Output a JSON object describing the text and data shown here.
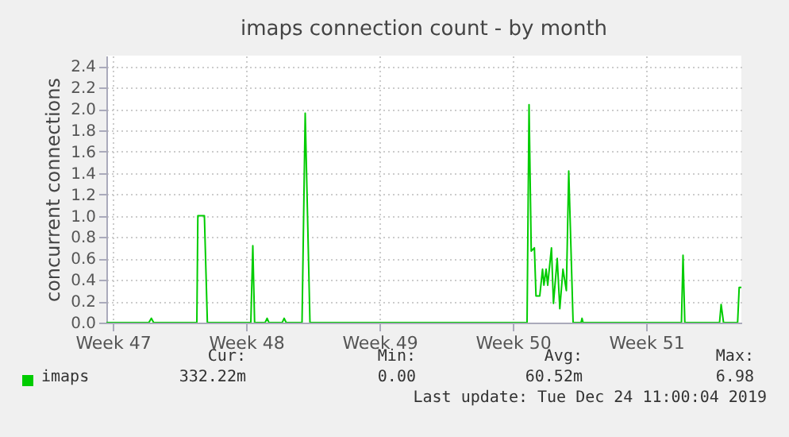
{
  "chart_data": {
    "type": "line",
    "title": "imaps connection count - by month",
    "ylabel": "concurrent connections",
    "xlim": [
      "2019-11-21T04:00",
      "2019-12-24T12:00"
    ],
    "xticks": [
      {
        "value": "2019-11-21T12:00",
        "label": "Week 47"
      },
      {
        "value": "2019-11-28T12:00",
        "label": "Week 48"
      },
      {
        "value": "2019-12-05T12:00",
        "label": "Week 49"
      },
      {
        "value": "2019-12-12T12:00",
        "label": "Week 50"
      },
      {
        "value": "2019-12-19T12:00",
        "label": "Week 51"
      }
    ],
    "ylim": [
      0,
      2.5
    ],
    "yticks": [
      {
        "value": 0,
        "label": "0.0"
      },
      {
        "value": 0.2,
        "label": "0.2"
      },
      {
        "value": 0.4,
        "label": "0.4"
      },
      {
        "value": 0.6,
        "label": "0.6"
      },
      {
        "value": 0.8,
        "label": "0.8"
      },
      {
        "value": 1,
        "label": "1.0"
      },
      {
        "value": 1.2,
        "label": "1.2"
      },
      {
        "value": 1.4,
        "label": "1.4"
      },
      {
        "value": 1.6,
        "label": "1.6"
      },
      {
        "value": 1.8,
        "label": "1.8"
      },
      {
        "value": 2,
        "label": "2.0"
      },
      {
        "value": 2.2,
        "label": "2.2"
      },
      {
        "value": 2.4,
        "label": "2.4"
      }
    ],
    "grid": true,
    "legend": "bottom left",
    "marker": "none",
    "line_style": "solid",
    "series": [
      {
        "name": "imaps",
        "color": "#00cc00",
        "x": [
          "2019-11-21T04:00",
          "2019-11-23T09:30",
          "2019-11-23T12:45",
          "2019-11-23T15:30",
          "2019-11-25T22:00",
          "2019-11-25T23:15",
          "2019-11-26T07:30",
          "2019-11-26T11:15",
          "2019-11-28T18:00",
          "2019-11-28T20:30",
          "2019-11-28T22:45",
          "2019-11-29T12:00",
          "2019-11-29T14:30",
          "2019-11-29T16:45",
          "2019-11-30T09:30",
          "2019-11-30T12:00",
          "2019-11-30T14:30",
          "2019-12-01T10:30",
          "2019-12-01T14:30",
          "2019-12-01T20:30",
          "2019-12-13T06:00",
          "2019-12-13T08:30",
          "2019-12-13T11:15",
          "2019-12-13T15:15",
          "2019-12-13T17:15",
          "2019-12-13T22:00",
          "2019-12-14T01:30",
          "2019-12-14T03:15",
          "2019-12-14T06:00",
          "2019-12-14T08:00",
          "2019-12-14T10:00",
          "2019-12-14T12:45",
          "2019-12-14T15:15",
          "2019-12-14T20:00",
          "2019-12-14T23:15",
          "2019-12-15T03:15",
          "2019-12-15T07:30",
          "2019-12-15T10:30",
          "2019-12-15T16:00",
          "2019-12-16T02:00",
          "2019-12-16T03:15",
          "2019-12-16T04:30",
          "2019-12-21T08:30",
          "2019-12-21T10:30",
          "2019-12-21T12:45",
          "2019-12-23T08:30",
          "2019-12-23T10:30",
          "2019-12-23T13:30",
          "2019-12-24T07:15",
          "2019-12-24T09:15",
          "2019-12-24T12:00"
        ],
        "values": [
          0,
          0,
          0.04,
          0,
          0,
          1.0,
          1.0,
          0,
          0,
          0.72,
          0,
          0,
          0.04,
          0,
          0,
          0.04,
          0,
          0,
          1.96,
          0,
          0,
          2.04,
          0.67,
          0.7,
          0.25,
          0.25,
          0.5,
          0.35,
          0.5,
          0.35,
          0.5,
          0.7,
          0.18,
          0.6,
          0.13,
          0.5,
          0.3,
          1.42,
          0,
          0,
          0.04,
          0,
          0,
          0.63,
          0,
          0,
          0.17,
          0,
          0,
          0.33,
          0.33
        ]
      }
    ],
    "annotations": [
      "Cur:",
      "Min:",
      "Avg:",
      "Max:",
      "332.22m",
      "0.00",
      "60.52m",
      "6.98",
      "Last update: Tue Dec 24 11:00:04 2019"
    ]
  }
}
